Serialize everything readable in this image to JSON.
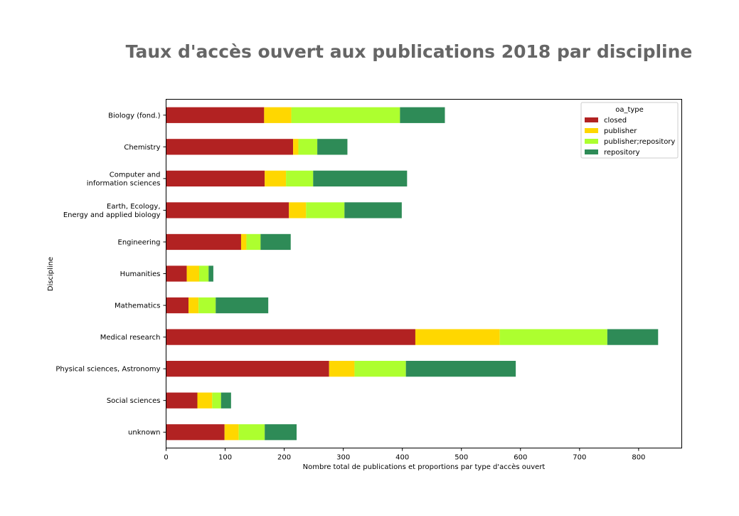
{
  "chart_data": {
    "type": "bar",
    "orientation": "horizontal",
    "stacked": true,
    "title": "Taux d'accès ouvert aux publications 2018 par discipline",
    "xlabel": "Nombre total de publications et proportions par type d'accès ouvert",
    "ylabel": "Discipline",
    "xlim": [
      0,
      873
    ],
    "xticks": [
      0,
      100,
      200,
      300,
      400,
      500,
      600,
      700,
      800
    ],
    "grid": false,
    "legend": {
      "title": "oa_type",
      "placement": "top-right"
    },
    "categories": [
      "Biology (fond.)",
      "Chemistry",
      "Computer and\ninformation sciences",
      "Earth, Ecology,\nEnergy and applied biology",
      "Engineering",
      "Humanities",
      "Mathematics",
      "Medical research",
      "Physical sciences, Astronomy",
      "Social sciences",
      "unknown"
    ],
    "series": [
      {
        "name": "closed",
        "color": "#b22222",
        "values": [
          166,
          215,
          167,
          208,
          127,
          35,
          38,
          422,
          276,
          53,
          99
        ]
      },
      {
        "name": "publisher",
        "color": "#ffd700",
        "values": [
          46,
          9,
          36,
          29,
          9,
          21,
          17,
          143,
          43,
          25,
          24
        ]
      },
      {
        "name": "publisher;repository",
        "color": "#adff2f",
        "values": [
          184,
          32,
          46,
          65,
          24,
          16,
          29,
          182,
          87,
          15,
          44
        ]
      },
      {
        "name": "repository",
        "color": "#2e8b57",
        "values": [
          76,
          51,
          159,
          97,
          51,
          8,
          89,
          86,
          186,
          17,
          54
        ]
      }
    ]
  }
}
